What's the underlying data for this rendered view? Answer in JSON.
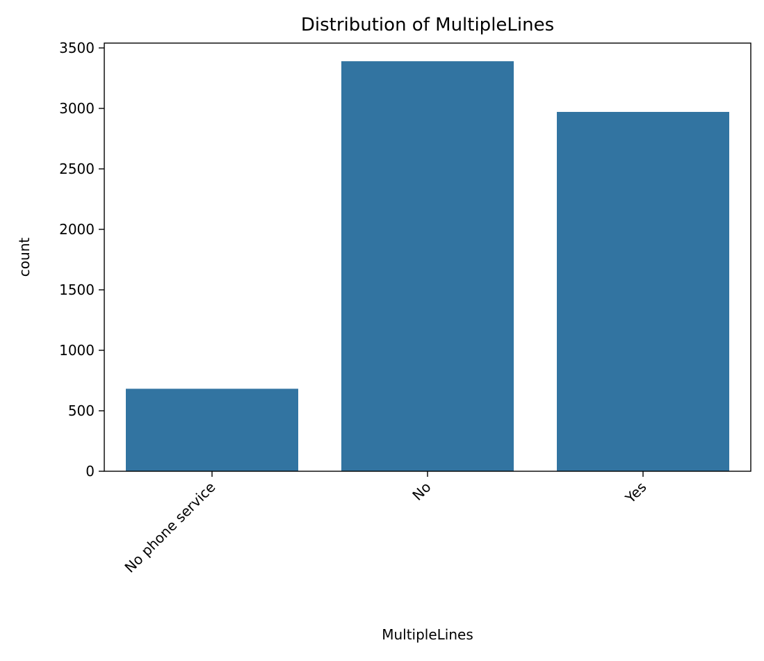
{
  "chart_data": {
    "type": "bar",
    "title": "Distribution of MultipleLines",
    "xlabel": "MultipleLines",
    "ylabel": "count",
    "categories": [
      "No phone service",
      "No",
      "Yes"
    ],
    "values": [
      682,
      3390,
      2971
    ],
    "ylim": [
      0,
      3540
    ],
    "yticks": [
      0,
      500,
      1000,
      1500,
      2000,
      2500,
      3000,
      3500
    ],
    "ytick_labels": [
      "0",
      "500",
      "1000",
      "1500",
      "2000",
      "2500",
      "3000",
      "3500"
    ],
    "bar_color": "#3274a1",
    "grid": false,
    "legend": "none",
    "xtick_rotation": "45"
  }
}
